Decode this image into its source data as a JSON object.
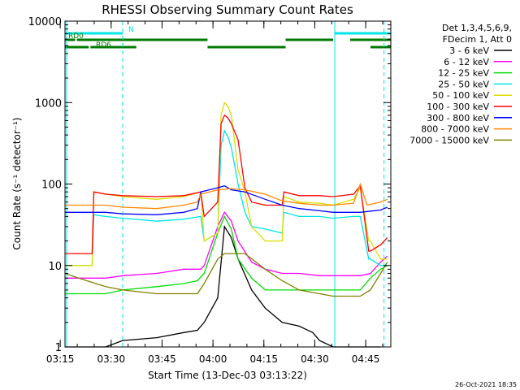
{
  "chart_data": {
    "type": "line",
    "title": "RHESSI Observing Summary Count Rates",
    "xlabel": "Start Time (13-Dec-03 03:13:22)",
    "ylabel": "Count Rate (s⁻¹ detector⁻¹)",
    "y_scale": "log",
    "ylim": [
      1,
      10000
    ],
    "xlim_minutes": [
      3.0,
      99.0
    ],
    "x_ticks": [
      "03:15",
      "03:30",
      "03:45",
      "04:00",
      "04:15",
      "04:30",
      "04:45"
    ],
    "y_ticks": [
      "1",
      "10",
      "100",
      "1000",
      "10000"
    ],
    "footer_date": "26-Oct-2021 18:35",
    "legend_header": [
      "Det 1,3,4,5,6,9,",
      "FDecim 1, Att 0"
    ],
    "flags": [
      {
        "label": "N",
        "color": "#00e5e5",
        "segments": [
          [
            3,
            20
          ],
          [
            82.5,
            99
          ]
        ]
      },
      {
        "label": "RD0",
        "color": "#007a00",
        "segments": [
          [
            3,
            6
          ],
          [
            6.5,
            45
          ],
          [
            68,
            82
          ],
          [
            87,
            99
          ]
        ]
      },
      {
        "label": "RD6",
        "color": "#007a00",
        "segments": [
          [
            3,
            10
          ],
          [
            10.5,
            24
          ],
          [
            45,
            68
          ],
          [
            93,
            99
          ]
        ]
      }
    ],
    "vertical_markers": [
      {
        "x": 3.5,
        "color": "#00e5e5",
        "style": "solid"
      },
      {
        "x": 20,
        "color": "#00e5e5",
        "style": "dashed"
      },
      {
        "x": 82.5,
        "color": "#00e5e5",
        "style": "solid"
      },
      {
        "x": 97,
        "color": "#00e5e5",
        "style": "dashed"
      }
    ],
    "series": [
      {
        "name": "3 - 6 keV",
        "color": "#000000",
        "x": [
          3,
          15,
          20,
          30,
          38,
          42,
          44,
          48,
          50,
          52,
          54,
          58,
          62,
          67,
          72,
          76,
          78,
          82,
          86,
          92,
          96
        ],
        "y": [
          1,
          1,
          1.2,
          1.3,
          1.5,
          1.6,
          2,
          4,
          30,
          22,
          12,
          5,
          3,
          2,
          1.8,
          1.5,
          1.2,
          1,
          1,
          1,
          1
        ]
      },
      {
        "name": "6 - 12 keV",
        "color": "#ff00ff",
        "x": [
          3,
          7,
          15,
          20,
          30,
          38,
          43,
          44,
          48,
          50,
          52,
          54,
          58,
          62,
          67,
          72,
          78,
          82,
          90,
          93,
          96,
          98
        ],
        "y": [
          7,
          7,
          7,
          7.5,
          8,
          9,
          9,
          10,
          30,
          45,
          35,
          20,
          11,
          9,
          8,
          8,
          7.5,
          7.5,
          7.5,
          8,
          11,
          13
        ]
      },
      {
        "name": "12 - 25 keV",
        "color": "#00dd00",
        "x": [
          3,
          7,
          15,
          20,
          30,
          38,
          42,
          44,
          48,
          50,
          52,
          54,
          58,
          62,
          67,
          72,
          76,
          82,
          90,
          93,
          96,
          98
        ],
        "y": [
          4.5,
          4.5,
          4.5,
          5,
          5.5,
          6,
          6.5,
          8,
          25,
          40,
          28,
          12,
          7,
          5,
          5,
          5,
          5,
          5,
          5,
          7,
          9,
          10
        ]
      },
      {
        "name": "25 - 50 keV",
        "color": "#00e5e5",
        "x": [
          3,
          11,
          11.5,
          15,
          20,
          30,
          38,
          43,
          44,
          48,
          49,
          50,
          51,
          52,
          54,
          56,
          58,
          62,
          67,
          67.5,
          72,
          78,
          82,
          88,
          90,
          92.5,
          93,
          96,
          98
        ],
        "y": [
          10,
          10,
          42,
          40,
          38,
          35,
          37,
          40,
          20,
          25,
          300,
          450,
          380,
          280,
          100,
          45,
          30,
          28,
          25,
          45,
          40,
          40,
          38,
          40,
          40,
          12,
          12,
          10,
          10
        ]
      },
      {
        "name": "50 - 100 keV",
        "color": "#dddd00",
        "x": [
          3,
          11,
          11.5,
          15,
          20,
          30,
          38,
          43,
          44,
          48,
          49,
          50,
          51,
          52,
          54,
          56,
          58,
          62,
          67,
          67.5,
          72,
          78,
          82,
          88,
          90,
          92.5,
          93,
          96,
          98
        ],
        "y": [
          10,
          10,
          80,
          75,
          70,
          65,
          70,
          80,
          20,
          25,
          700,
          1000,
          900,
          700,
          150,
          80,
          30,
          20,
          20,
          70,
          60,
          58,
          55,
          65,
          90,
          20,
          20,
          12,
          12
        ]
      },
      {
        "name": "100 - 300 keV",
        "color": "#ff0000",
        "x": [
          3,
          11,
          11.5,
          15,
          20,
          30,
          38,
          43,
          44,
          48,
          49,
          50,
          51,
          52,
          54,
          56,
          58,
          62,
          67,
          67.5,
          72,
          78,
          82,
          88,
          90,
          92.5,
          93,
          96,
          98
        ],
        "y": [
          14,
          14,
          80,
          75,
          72,
          70,
          72,
          80,
          40,
          60,
          550,
          700,
          650,
          550,
          350,
          90,
          60,
          55,
          55,
          80,
          72,
          72,
          70,
          75,
          95,
          15,
          15,
          18,
          22
        ]
      },
      {
        "name": "300 - 800 keV",
        "color": "#0000ff",
        "x": [
          3,
          7,
          15,
          20,
          30,
          38,
          42,
          43,
          48,
          50,
          52,
          56,
          62,
          67,
          72,
          78,
          82,
          90,
          96,
          98
        ],
        "y": [
          45,
          45,
          45,
          43,
          42,
          45,
          50,
          80,
          90,
          95,
          85,
          80,
          65,
          55,
          50,
          47,
          45,
          45,
          48,
          52
        ]
      },
      {
        "name": "800 - 7000 keV",
        "color": "#ff8800",
        "x": [
          3,
          7,
          15,
          20,
          30,
          38,
          42,
          43,
          48,
          52,
          56,
          62,
          67,
          72,
          78,
          82,
          88,
          90,
          92,
          96,
          98
        ],
        "y": [
          55,
          55,
          55,
          52,
          50,
          55,
          60,
          75,
          85,
          88,
          85,
          75,
          62,
          58,
          55,
          55,
          58,
          100,
          55,
          60,
          65
        ]
      },
      {
        "name": "7000 - 15000 keV",
        "color": "#808000",
        "x": [
          3,
          7,
          15,
          20,
          30,
          38,
          42,
          44,
          48,
          50,
          52,
          56,
          62,
          67,
          72,
          78,
          82,
          90,
          93,
          96,
          98
        ],
        "y": [
          8,
          7,
          5.5,
          5,
          4.5,
          4.5,
          4.5,
          6,
          12,
          14,
          14,
          14,
          9,
          6.5,
          5,
          4.5,
          4.2,
          4.2,
          5,
          8,
          11
        ]
      }
    ]
  }
}
